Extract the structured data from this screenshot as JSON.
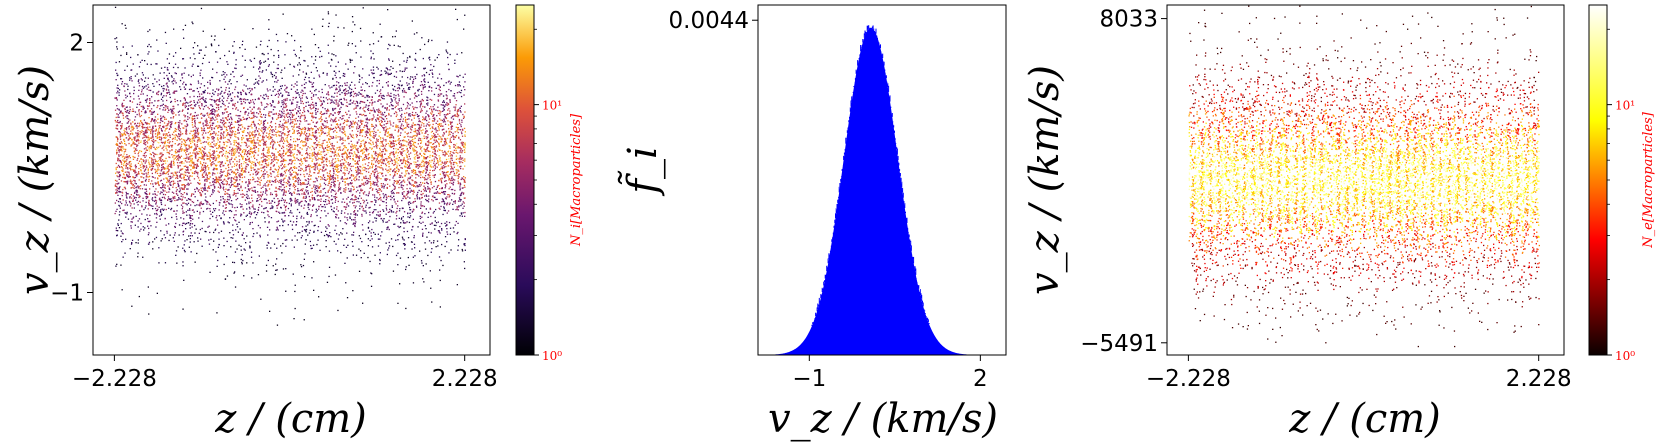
{
  "chart_data": [
    {
      "type": "heatmap",
      "subtype": "phase-space scatter (ions)",
      "xlabel": "z / (cm)",
      "ylabel": "v_z / (km/s)",
      "x_ticks": [
        -2.228,
        2.228
      ],
      "y_ticks": [
        -1,
        2
      ],
      "x_tick_labels": [
        "−2.228",
        "2.228"
      ],
      "y_tick_labels": [
        "−1",
        "2"
      ],
      "xlim": [
        -2.5,
        2.55
      ],
      "ylim": [
        -1.75,
        2.45
      ],
      "distribution": {
        "center": 0.7,
        "sigma": 0.55,
        "vertical_striations": 41
      },
      "colormap": "inferno",
      "colorbar": {
        "label": "N_i[Macroparticles]",
        "scale": "log",
        "range": [
          1,
          25
        ],
        "ticks": [
          1,
          10
        ],
        "tick_labels": [
          "10⁰",
          "10¹"
        ]
      },
      "grid": false
    },
    {
      "type": "area",
      "subtype": "histogram (ion velocity distribution)",
      "xlabel": "v_z / (km/s)",
      "ylabel": "f̃_i",
      "x_ticks": [
        -1,
        2
      ],
      "x_tick_labels": [
        "−1",
        "2"
      ],
      "y_ticks": [
        0.0044
      ],
      "y_tick_labels": [
        "0.0044"
      ],
      "xlim": [
        -1.9,
        2.45
      ],
      "ylim": [
        0,
        0.0046
      ],
      "peak": {
        "v": 0.08,
        "value": 0.0043
      },
      "sigma": 0.47,
      "x": [
        -1.6,
        -1.2,
        -0.8,
        -0.4,
        0.0,
        0.08,
        0.4,
        0.8,
        1.2,
        1.6,
        2.0
      ],
      "y": [
        0.0,
        3e-05,
        0.0006,
        0.0025,
        0.0042,
        0.0043,
        0.0033,
        0.0011,
        0.00015,
        1e-05,
        0.0
      ],
      "color": "#0000ff",
      "grid": false
    },
    {
      "type": "heatmap",
      "subtype": "phase-space scatter (electrons)",
      "xlabel": "z / (cm)",
      "ylabel": "v_z / (km/s)",
      "x_ticks": [
        -2.228,
        2.228
      ],
      "y_ticks": [
        -5491,
        8033
      ],
      "x_tick_labels": [
        "−2.228",
        "2.228"
      ],
      "y_tick_labels": [
        "−5491",
        "8033"
      ],
      "xlim": [
        -2.5,
        2.55
      ],
      "ylim": [
        -6000,
        8600
      ],
      "distribution": {
        "center": 1300,
        "sigma": 2200,
        "vertical_striations": 41
      },
      "colormap": "hot",
      "colorbar": {
        "label": "N_e[Macroparticles]",
        "scale": "log",
        "range": [
          1,
          25
        ],
        "ticks": [
          1,
          10
        ],
        "tick_labels": [
          "10⁰",
          "10¹"
        ]
      },
      "grid": false
    }
  ]
}
